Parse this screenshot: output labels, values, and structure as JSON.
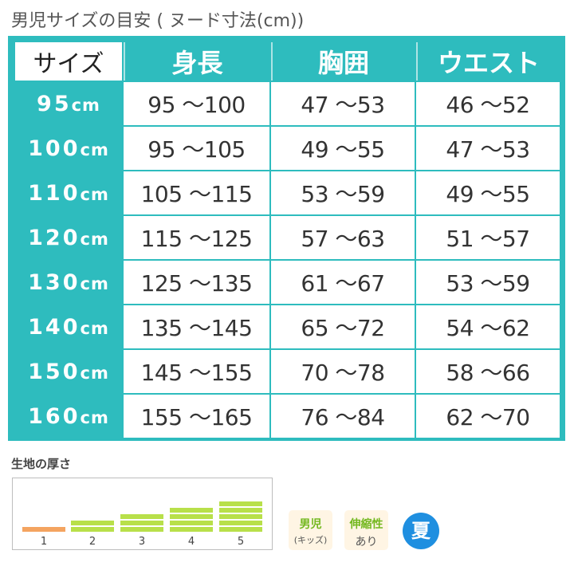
{
  "title": "男児サイズの目安 ( ヌード寸法(cm))",
  "table": {
    "corner": "サイズ",
    "columns": [
      "身長",
      "胸囲",
      "ウエスト"
    ],
    "unit": "cm",
    "rows": [
      {
        "size": "95",
        "values": [
          "95 ～100",
          "47 ～53",
          "46 ～52"
        ]
      },
      {
        "size": "100",
        "values": [
          "95 ～105",
          "49 ～55",
          "47 ～53"
        ]
      },
      {
        "size": "110",
        "values": [
          "105 ～115",
          "53 ～59",
          "49 ～55"
        ]
      },
      {
        "size": "120",
        "values": [
          "115 ～125",
          "57 ～63",
          "51 ～57"
        ]
      },
      {
        "size": "130",
        "values": [
          "125 ～135",
          "61 ～67",
          "53 ～59"
        ]
      },
      {
        "size": "140",
        "values": [
          "135 ～145",
          "65 ～72",
          "54 ～62"
        ]
      },
      {
        "size": "150",
        "values": [
          "145 ～155",
          "70 ～78",
          "58 ～66"
        ]
      },
      {
        "size": "160",
        "values": [
          "155 ～165",
          "76 ～84",
          "62 ～70"
        ]
      }
    ]
  },
  "thickness": {
    "title": "生地の厚さ",
    "levels": [
      "1",
      "2",
      "3",
      "4",
      "5"
    ],
    "selected_level": 1
  },
  "badges": {
    "gender": {
      "main": "男児",
      "sub": "(キッズ)"
    },
    "stretch": {
      "main": "伸縮性",
      "sub": "あり"
    },
    "season": "夏"
  },
  "colors": {
    "teal": "#2ebcbe",
    "green_bar": "#b8e04a",
    "orange_bar": "#f4a460",
    "season_blue": "#1f8fe0",
    "badge_green": "#73b81f"
  }
}
